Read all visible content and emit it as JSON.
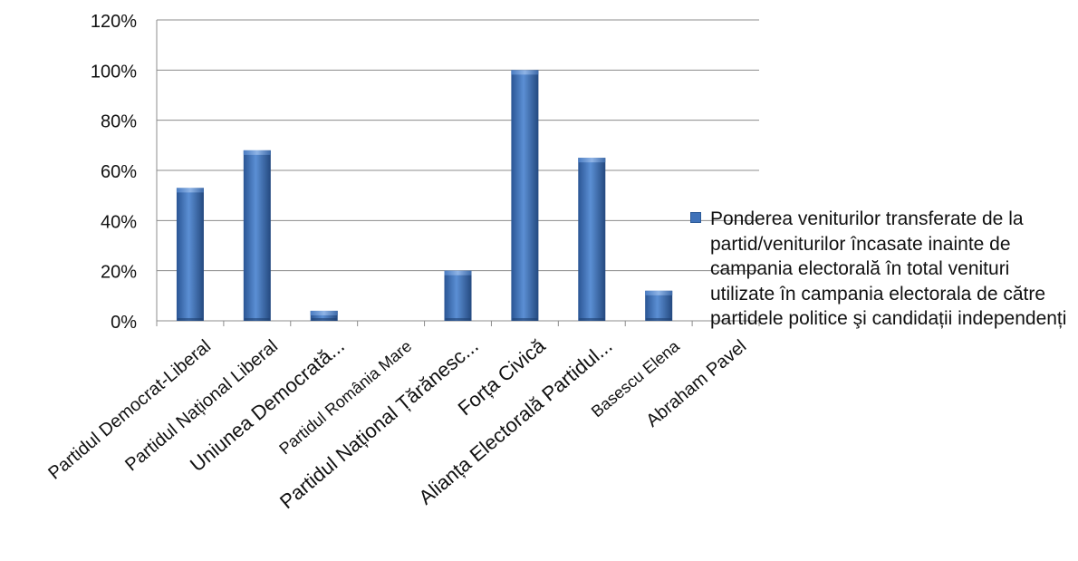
{
  "chart_data": {
    "type": "bar",
    "categories": [
      "Partidul Democrat-Liberal",
      "Partidul Național Liberal",
      "Uniunea Democrată...",
      "Partidul România Mare",
      "Partidul Național Țărănesc...",
      "Forța Civică",
      "Alianța Electorală Partidul...",
      "Basescu Elena",
      "Abraham Pavel"
    ],
    "series": [
      {
        "name": "Ponderea veniturilor transferate de la partid/veniturilor încasate inainte de campania electorală  în total venituri utilizate în campania electorala de către partidele politice şi candidații independenți",
        "values": [
          53,
          68,
          4,
          0,
          20,
          100,
          65,
          12,
          0
        ],
        "color": "#3f72b9"
      }
    ],
    "yticks": [
      "0%",
      "20%",
      "40%",
      "60%",
      "80%",
      "100%",
      "120%"
    ],
    "ylim": [
      0,
      120
    ],
    "grid": true,
    "legend_position": "right"
  }
}
